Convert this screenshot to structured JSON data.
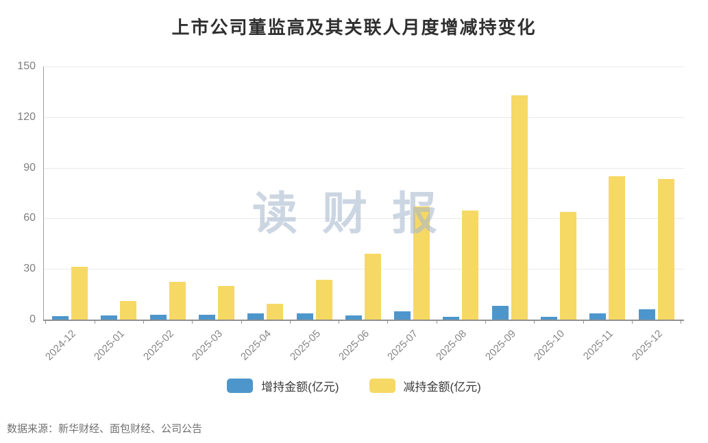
{
  "title": "上市公司董监高及其关联人月度增减持变化",
  "watermark": "读财报",
  "source": "数据来源：新华财经、面包财经、公司公告",
  "legend": {
    "items": [
      {
        "label": "增持金额(亿元)",
        "color": "#4D96CB"
      },
      {
        "label": "减持金额(亿元)",
        "color": "#F6D865"
      }
    ]
  },
  "chart_data": {
    "type": "bar",
    "title": "上市公司董监高及其关联人月度增减持变化",
    "categories": [
      "2024-12",
      "2025-01",
      "2025-02",
      "2025-03",
      "2025-04",
      "2025-05",
      "2025-06",
      "2025-07",
      "2025-08",
      "2025-09",
      "2025-10",
      "2025-11",
      "2025-12"
    ],
    "series": [
      {
        "name": "增持金额(亿元)",
        "color": "#4D96CB",
        "values": [
          2,
          2.5,
          3,
          3,
          3.5,
          3.5,
          2.5,
          5,
          1.5,
          8,
          1.5,
          3.5,
          6
        ]
      },
      {
        "name": "减持金额(亿元)",
        "color": "#F6D865",
        "values": [
          31.5,
          11,
          22.5,
          20,
          9.5,
          23.5,
          39,
          67,
          64.5,
          133,
          64,
          85,
          83.5
        ]
      }
    ],
    "xlabel": "",
    "ylabel": "",
    "ylim": [
      0,
      150
    ],
    "yticks": [
      0,
      30,
      60,
      90,
      120,
      150
    ],
    "grid": true,
    "legend_position": "bottom"
  }
}
